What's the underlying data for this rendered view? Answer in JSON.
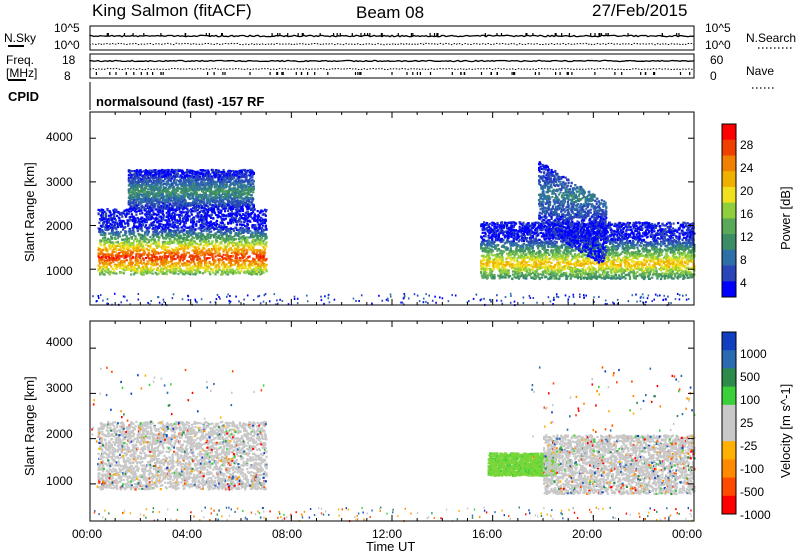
{
  "header": {
    "station": "King Salmon (fitACF)",
    "beam": "Beam 08",
    "date": "27/Feb/2015"
  },
  "strips": {
    "nsky_label": "N.Sky",
    "nsky_ticks": [
      "10^5",
      "10^0"
    ],
    "nsearch_label": "N.Search",
    "nsearch_ticks": [
      "10^5",
      "10^0"
    ],
    "freq_label_line1": "Freq.",
    "freq_label_line2": "[MHz]",
    "freq_ticks": [
      "18",
      "8"
    ],
    "nave_label": "Nave",
    "nave_ticks": [
      "60",
      "0"
    ],
    "cpid_label": "CPID",
    "cpid_text": "normalsound (fast) -157 RF"
  },
  "axes": {
    "ylabel": "Slant Range [km]",
    "xlabel": "Time UT",
    "y_ticks": [
      "4000",
      "3000",
      "2000",
      "1000"
    ],
    "x_ticks": [
      "00:00",
      "04:00",
      "08:00",
      "12:00",
      "16:00",
      "20:00",
      "00:00"
    ]
  },
  "colors": {
    "power_scale": [
      "#0000ff",
      "#2a45b8",
      "#2f6fa8",
      "#3c8d66",
      "#5aa95a",
      "#8fcf3c",
      "#f0e020",
      "#f0b000",
      "#f08000",
      "#f04000",
      "#ff0000"
    ],
    "velocity_scale": [
      "#ff0000",
      "#ff4a00",
      "#ff8a00",
      "#ffb000",
      "#c8c8c8",
      "#c8c8c8",
      "#3ad03a",
      "#2d8a4a",
      "#2a6ab0",
      "#1040c0"
    ]
  },
  "chart_data": [
    {
      "type": "heatmap",
      "title": "Power",
      "xlabel": "Time UT",
      "ylabel": "Slant Range [km]",
      "xlim": [
        "00:00",
        "24:00"
      ],
      "ylim": [
        180,
        4600
      ],
      "colorbar": {
        "label": "Power [dB]",
        "ticks": [
          "28",
          "24",
          "20",
          "16",
          "12",
          "8",
          "4"
        ],
        "range": [
          0,
          30
        ]
      },
      "echo_regions": [
        {
          "t_start": 0.3,
          "t_end": 7.0,
          "range_low": 900,
          "range_high": 2400,
          "peak_range": 1300,
          "peak_db": 25
        },
        {
          "t_start": 1.5,
          "t_end": 6.5,
          "range_low": 2400,
          "range_high": 3300,
          "peak_range": 2800,
          "peak_db": 8
        },
        {
          "t_start": 15.5,
          "t_end": 24.0,
          "range_low": 800,
          "range_high": 2100,
          "peak_range": 1150,
          "peak_db": 18
        },
        {
          "t_start": 17.8,
          "t_end": 20.5,
          "range_low": 2000,
          "range_high": 3500,
          "peak_range": 2700,
          "peak_db": 6
        }
      ]
    },
    {
      "type": "heatmap",
      "title": "Velocity",
      "xlabel": "Time UT",
      "ylabel": "Slant Range [km]",
      "xlim": [
        "00:00",
        "24:00"
      ],
      "ylim": [
        180,
        4600
      ],
      "colorbar": {
        "label": "Velocity [m s^-1]",
        "ticks": [
          "1000",
          "500",
          "100",
          "25",
          "-25",
          "-100",
          "-500",
          "-1000"
        ]
      },
      "echo_regions": [
        {
          "t_start": 0.3,
          "t_end": 7.0,
          "range_low": 900,
          "range_high": 2400,
          "dominant": "ground scatter (grey)"
        },
        {
          "t_start": 15.8,
          "t_end": 18.5,
          "range_low": 1200,
          "range_high": 1700,
          "dominant": "100 to 500 (green)"
        },
        {
          "t_start": 18.0,
          "t_end": 24.0,
          "range_low": 800,
          "range_high": 2100,
          "dominant": "ground scatter (grey)"
        }
      ]
    }
  ]
}
